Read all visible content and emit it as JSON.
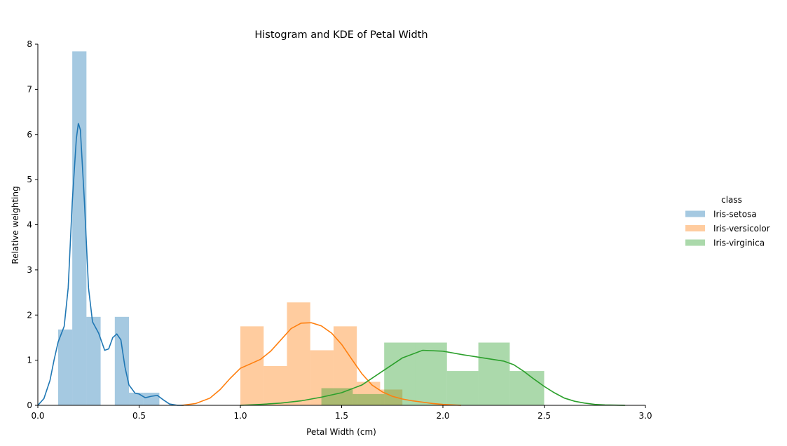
{
  "chart_data": {
    "type": "histogram",
    "title": "Histogram and KDE of Petal Width",
    "xlabel": "Petal Width (cm)",
    "ylabel": "Relative weighting",
    "xlim": [
      0.0,
      3.0
    ],
    "ylim": [
      0,
      8
    ],
    "xticks": [
      "0.0",
      "0.5",
      "1.0",
      "1.5",
      "2.0",
      "2.5",
      "3.0"
    ],
    "yticks": [
      "0",
      "1",
      "2",
      "3",
      "4",
      "5",
      "6",
      "7",
      "8"
    ],
    "grid": false,
    "legend": {
      "title": "class",
      "placement": "right"
    },
    "series": [
      {
        "name": "Iris-setosa",
        "color": "#1f77b4",
        "bars": [
          {
            "x0": 0.1,
            "x1": 0.17,
            "y": 1.68
          },
          {
            "x0": 0.17,
            "x1": 0.24,
            "y": 7.84
          },
          {
            "x0": 0.24,
            "x1": 0.31,
            "y": 1.96
          },
          {
            "x0": 0.31,
            "x1": 0.38,
            "y": 0.0
          },
          {
            "x0": 0.38,
            "x1": 0.45,
            "y": 1.96
          },
          {
            "x0": 0.45,
            "x1": 0.52,
            "y": 0.28
          },
          {
            "x0": 0.52,
            "x1": 0.6,
            "y": 0.28
          }
        ],
        "kde": [
          [
            0.0,
            0.0
          ],
          [
            0.03,
            0.15
          ],
          [
            0.06,
            0.55
          ],
          [
            0.08,
            1.0
          ],
          [
            0.1,
            1.4
          ],
          [
            0.13,
            1.75
          ],
          [
            0.15,
            2.6
          ],
          [
            0.17,
            4.5
          ],
          [
            0.19,
            5.9
          ],
          [
            0.2,
            6.25
          ],
          [
            0.21,
            6.1
          ],
          [
            0.23,
            4.5
          ],
          [
            0.25,
            2.6
          ],
          [
            0.27,
            1.85
          ],
          [
            0.3,
            1.6
          ],
          [
            0.33,
            1.22
          ],
          [
            0.35,
            1.25
          ],
          [
            0.37,
            1.5
          ],
          [
            0.39,
            1.58
          ],
          [
            0.41,
            1.45
          ],
          [
            0.43,
            0.85
          ],
          [
            0.45,
            0.45
          ],
          [
            0.48,
            0.27
          ],
          [
            0.5,
            0.25
          ],
          [
            0.53,
            0.17
          ],
          [
            0.56,
            0.2
          ],
          [
            0.59,
            0.22
          ],
          [
            0.62,
            0.12
          ],
          [
            0.65,
            0.03
          ],
          [
            0.69,
            0.0
          ],
          [
            0.72,
            0.0
          ]
        ]
      },
      {
        "name": "Iris-versicolor",
        "color": "#ff7f0e",
        "bars": [
          {
            "x0": 1.0,
            "x1": 1.115,
            "y": 1.75
          },
          {
            "x0": 1.115,
            "x1": 1.23,
            "y": 0.87
          },
          {
            "x0": 1.23,
            "x1": 1.345,
            "y": 2.28
          },
          {
            "x0": 1.345,
            "x1": 1.46,
            "y": 1.22
          },
          {
            "x0": 1.46,
            "x1": 1.575,
            "y": 1.75
          },
          {
            "x0": 1.575,
            "x1": 1.69,
            "y": 0.52
          },
          {
            "x0": 1.69,
            "x1": 1.8,
            "y": 0.35
          }
        ],
        "kde": [
          [
            0.71,
            0.0
          ],
          [
            0.78,
            0.04
          ],
          [
            0.85,
            0.16
          ],
          [
            0.9,
            0.35
          ],
          [
            0.95,
            0.6
          ],
          [
            1.0,
            0.82
          ],
          [
            1.05,
            0.92
          ],
          [
            1.1,
            1.02
          ],
          [
            1.15,
            1.2
          ],
          [
            1.2,
            1.45
          ],
          [
            1.25,
            1.7
          ],
          [
            1.3,
            1.82
          ],
          [
            1.35,
            1.83
          ],
          [
            1.4,
            1.76
          ],
          [
            1.45,
            1.6
          ],
          [
            1.5,
            1.35
          ],
          [
            1.55,
            1.02
          ],
          [
            1.6,
            0.7
          ],
          [
            1.65,
            0.45
          ],
          [
            1.7,
            0.3
          ],
          [
            1.75,
            0.2
          ],
          [
            1.8,
            0.14
          ],
          [
            1.85,
            0.1
          ],
          [
            1.9,
            0.07
          ],
          [
            1.95,
            0.04
          ],
          [
            2.0,
            0.02
          ],
          [
            2.05,
            0.01
          ],
          [
            2.09,
            0.0
          ]
        ]
      },
      {
        "name": "Iris-virginica",
        "color": "#2ca02c",
        "bars": [
          {
            "x0": 1.4,
            "x1": 1.555,
            "y": 0.38
          },
          {
            "x0": 1.555,
            "x1": 1.71,
            "y": 0.25
          },
          {
            "x0": 1.71,
            "x1": 1.865,
            "y": 1.39
          },
          {
            "x0": 1.865,
            "x1": 2.02,
            "y": 1.39
          },
          {
            "x0": 2.02,
            "x1": 2.175,
            "y": 0.76
          },
          {
            "x0": 2.175,
            "x1": 2.33,
            "y": 1.39
          },
          {
            "x0": 2.33,
            "x1": 2.5,
            "y": 0.76
          }
        ],
        "kde": [
          [
            1.0,
            0.0
          ],
          [
            1.1,
            0.02
          ],
          [
            1.2,
            0.05
          ],
          [
            1.3,
            0.1
          ],
          [
            1.4,
            0.18
          ],
          [
            1.5,
            0.28
          ],
          [
            1.6,
            0.45
          ],
          [
            1.7,
            0.75
          ],
          [
            1.8,
            1.05
          ],
          [
            1.9,
            1.22
          ],
          [
            2.0,
            1.2
          ],
          [
            2.1,
            1.12
          ],
          [
            2.2,
            1.05
          ],
          [
            2.3,
            0.98
          ],
          [
            2.35,
            0.9
          ],
          [
            2.4,
            0.75
          ],
          [
            2.45,
            0.58
          ],
          [
            2.5,
            0.42
          ],
          [
            2.55,
            0.28
          ],
          [
            2.6,
            0.16
          ],
          [
            2.65,
            0.09
          ],
          [
            2.7,
            0.05
          ],
          [
            2.75,
            0.02
          ],
          [
            2.8,
            0.01
          ],
          [
            2.9,
            0.0
          ]
        ]
      }
    ]
  }
}
